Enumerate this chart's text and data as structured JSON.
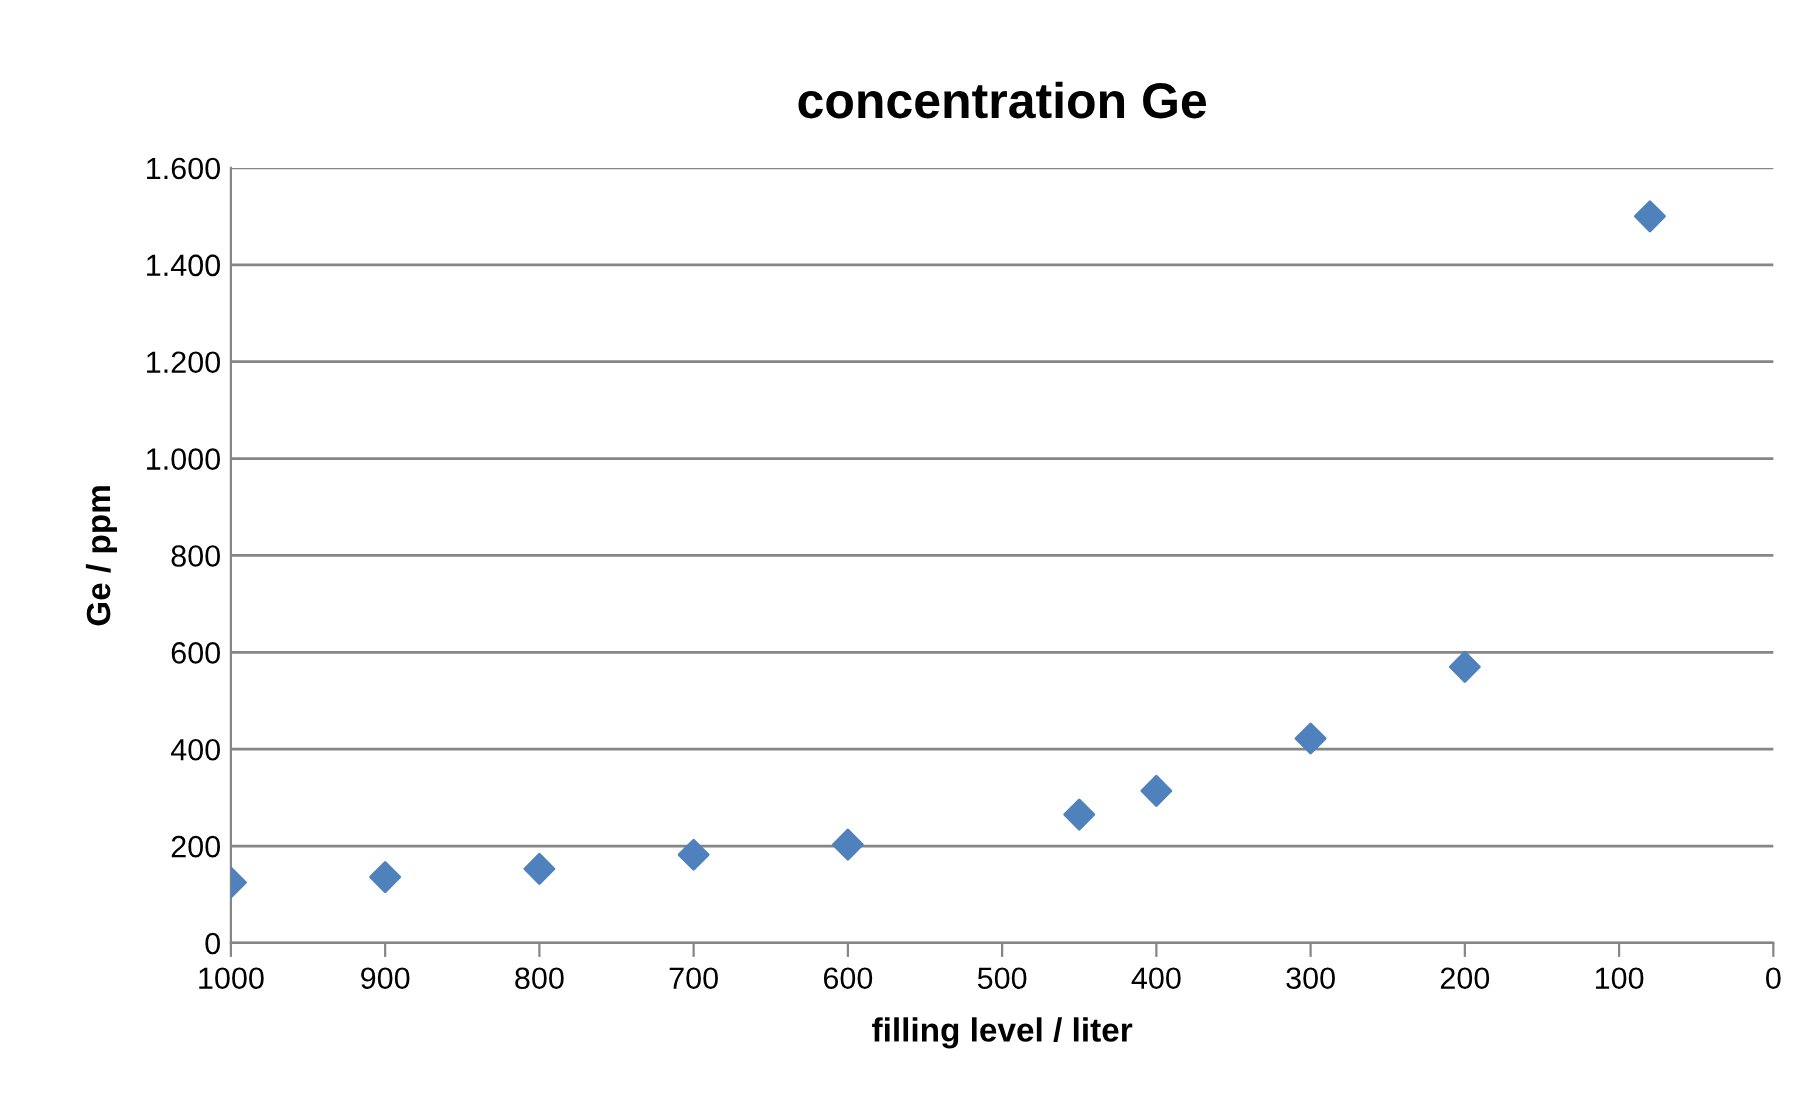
{
  "chart_data": {
    "type": "scatter",
    "title": "concentration Ge",
    "xlabel": "filling level / liter",
    "ylabel": "Ge / ppm",
    "x": [
      1000,
      900,
      800,
      700,
      600,
      450,
      400,
      300,
      200,
      80
    ],
    "series": [
      {
        "color": "#4f81bd",
        "values": [
          125,
          136,
          153,
          182,
          203,
          265,
          314,
          422,
          570,
          1500
        ]
      }
    ],
    "xlim": [
      1000,
      0
    ],
    "xticks": [
      1000,
      900,
      800,
      700,
      600,
      500,
      400,
      300,
      200,
      100,
      0
    ],
    "ylim": [
      0,
      1600
    ],
    "yticks": [
      0,
      200,
      400,
      600,
      800,
      {
        "value": 1000,
        "label": "1.000"
      },
      {
        "value": 1200,
        "label": "1.200"
      },
      {
        "value": 1400,
        "label": "1.400"
      },
      {
        "value": 1600,
        "label": "1.600"
      }
    ],
    "grid": "y",
    "marker": "diamond",
    "legend": false
  }
}
